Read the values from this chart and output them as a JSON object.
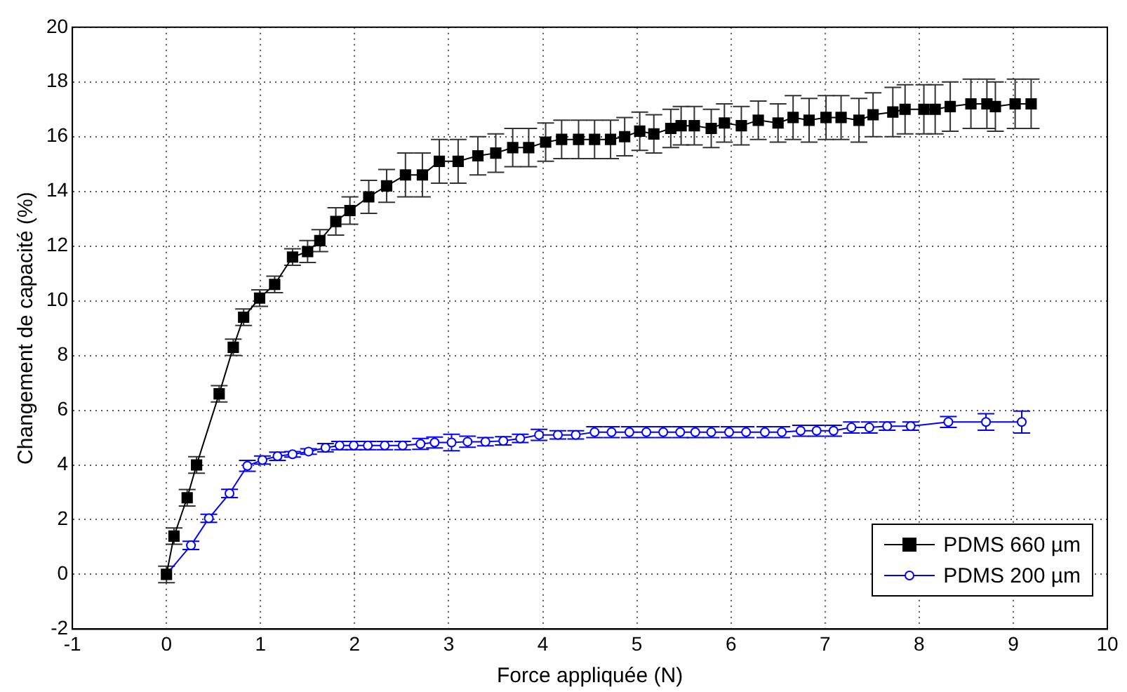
{
  "chart_data": {
    "type": "line",
    "xlabel": "Force appliquée (N)",
    "ylabel": "Changement de capacité (%)",
    "xlim": [
      -1,
      10
    ],
    "xticks": [
      -1,
      0,
      1,
      2,
      3,
      4,
      5,
      6,
      7,
      8,
      9,
      10
    ],
    "ylim": [
      -2,
      20
    ],
    "yticks": [
      -2,
      0,
      2,
      4,
      6,
      8,
      10,
      12,
      14,
      16,
      18,
      20
    ],
    "grid": true,
    "legend": "bottom right",
    "line_style": "solid",
    "series": [
      {
        "name": "PDMS 660 µm",
        "color": "#000000",
        "marker": "square",
        "x": [
          0,
          0.08,
          0.22,
          0.32,
          0.56,
          0.71,
          0.82,
          0.99,
          1.15,
          1.34,
          1.5,
          1.63,
          1.8,
          1.95,
          2.15,
          2.34,
          2.54,
          2.72,
          2.9,
          3.1,
          3.31,
          3.5,
          3.68,
          3.85,
          4.03,
          4.2,
          4.38,
          4.55,
          4.72,
          4.87,
          5.03,
          5.18,
          5.36,
          5.47,
          5.61,
          5.79,
          5.93,
          6.11,
          6.29,
          6.5,
          6.66,
          6.83,
          7.01,
          7.17,
          7.36,
          7.51,
          7.72,
          7.85,
          8.05,
          8.17,
          8.33,
          8.55,
          8.72,
          8.81,
          9.02,
          9.19
        ],
        "values": [
          0,
          1.4,
          2.8,
          4.0,
          6.6,
          8.3,
          9.4,
          10.1,
          10.6,
          11.6,
          11.8,
          12.2,
          12.9,
          13.3,
          13.8,
          14.2,
          14.6,
          14.6,
          15.1,
          15.1,
          15.3,
          15.4,
          15.6,
          15.6,
          15.8,
          15.9,
          15.9,
          15.9,
          15.9,
          16.0,
          16.2,
          16.1,
          16.3,
          16.4,
          16.4,
          16.3,
          16.5,
          16.4,
          16.6,
          16.5,
          16.7,
          16.6,
          16.7,
          16.7,
          16.6,
          16.8,
          16.9,
          17.0,
          17.0,
          17.0,
          17.1,
          17.2,
          17.2,
          17.1,
          17.2,
          17.2
        ],
        "errors": [
          0.3,
          0.3,
          0.3,
          0.3,
          0.3,
          0.3,
          0.3,
          0.3,
          0.3,
          0.3,
          0.4,
          0.4,
          0.5,
          0.5,
          0.6,
          0.6,
          0.8,
          0.8,
          0.8,
          0.8,
          0.7,
          0.7,
          0.7,
          0.7,
          0.7,
          0.7,
          0.7,
          0.7,
          0.7,
          0.7,
          0.7,
          0.7,
          0.7,
          0.7,
          0.7,
          0.7,
          0.7,
          0.7,
          0.7,
          0.7,
          0.8,
          0.8,
          0.8,
          0.8,
          0.8,
          0.8,
          0.9,
          0.9,
          0.9,
          0.9,
          0.9,
          0.9,
          0.9,
          0.9,
          0.9,
          0.9
        ]
      },
      {
        "name": "PDMS 200 µm",
        "color": "#0000ff",
        "marker": "circle",
        "x": [
          0,
          0.26,
          0.45,
          0.67,
          0.86,
          1.02,
          1.18,
          1.34,
          1.51,
          1.69,
          1.84,
          1.99,
          2.14,
          2.32,
          2.51,
          2.7,
          2.85,
          3.03,
          3.2,
          3.39,
          3.58,
          3.76,
          3.96,
          4.16,
          4.35,
          4.55,
          4.73,
          4.92,
          5.1,
          5.28,
          5.46,
          5.62,
          5.79,
          5.98,
          6.16,
          6.36,
          6.54,
          6.74,
          6.91,
          7.09,
          7.28,
          7.47,
          7.66,
          7.91,
          8.31,
          8.71,
          9.09
        ],
        "values": [
          0,
          1.06,
          2.05,
          2.96,
          3.97,
          4.18,
          4.32,
          4.39,
          4.49,
          4.63,
          4.71,
          4.71,
          4.71,
          4.71,
          4.71,
          4.77,
          4.82,
          4.82,
          4.85,
          4.85,
          4.88,
          4.97,
          5.1,
          5.1,
          5.1,
          5.2,
          5.2,
          5.2,
          5.2,
          5.2,
          5.2,
          5.2,
          5.2,
          5.2,
          5.2,
          5.2,
          5.2,
          5.25,
          5.25,
          5.25,
          5.37,
          5.37,
          5.42,
          5.42,
          5.57,
          5.57,
          5.57
        ],
        "errors": [
          null,
          0.15,
          0.15,
          0.15,
          0.2,
          0.15,
          0.15,
          0.1,
          0.1,
          0.15,
          0.15,
          0.15,
          0.15,
          0.15,
          0.15,
          0.2,
          0.2,
          0.3,
          0.2,
          0.15,
          0.15,
          0.15,
          0.2,
          0.15,
          0.15,
          0.2,
          0.2,
          0.2,
          0.2,
          0.2,
          0.2,
          0.2,
          0.2,
          0.2,
          0.2,
          0.2,
          0.2,
          0.2,
          0.2,
          0.2,
          0.2,
          0.2,
          0.15,
          0.15,
          0.2,
          0.3,
          0.4
        ]
      }
    ]
  }
}
